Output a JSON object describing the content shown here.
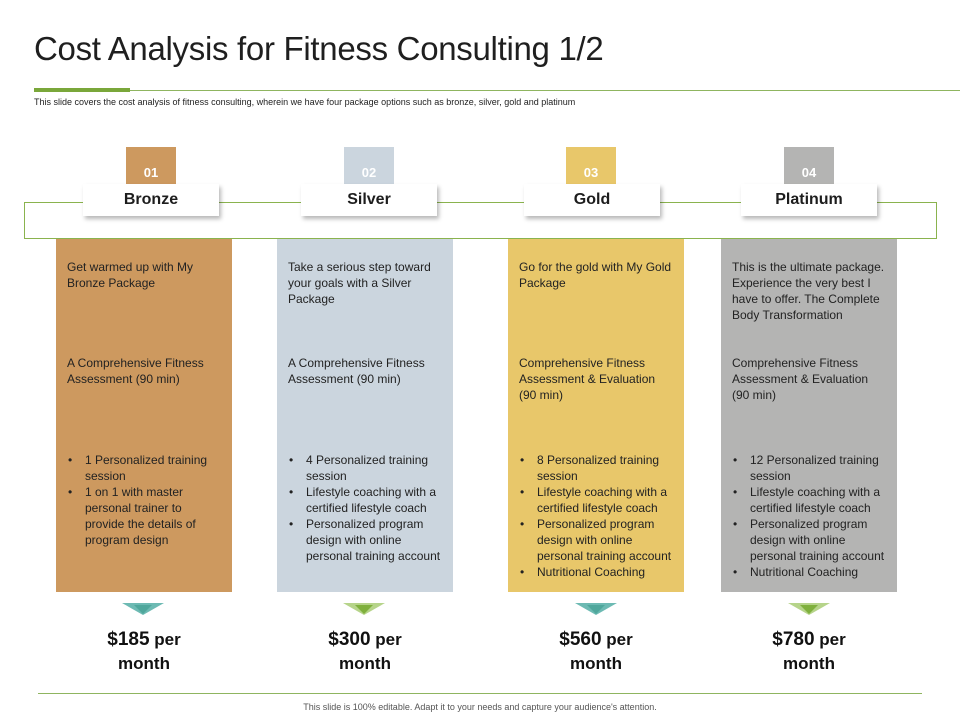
{
  "slide": {
    "title": "Cost Analysis for Fitness Consulting 1/2",
    "subtitle": "This slide covers the cost analysis of fitness consulting, wherein we have four package options such as bronze, silver, gold and platinum",
    "footer": "This slide is 100% editable. Adapt it to your needs and capture your audience's attention."
  },
  "colors": {
    "accent_green": "#7aa73a",
    "bronze": "#cd995f",
    "silver": "#cbd5de",
    "gold": "#e8c76a",
    "platinum": "#b4b4b3"
  },
  "packages": [
    {
      "number": "01",
      "name": "Bronze",
      "intro": "Get warmed up with My Bronze Package",
      "assessment": "A Comprehensive Fitness Assessment (90 min)",
      "features": [
        "1 Personalized training session",
        "1 on 1 with master personal trainer to provide the details of program design"
      ],
      "price": "$185",
      "price_suffix": "per",
      "price_period": "month"
    },
    {
      "number": "02",
      "name": "Silver",
      "intro": "Take a serious step toward your goals with a Silver Package",
      "assessment": "A Comprehensive Fitness Assessment (90 min)",
      "features": [
        "4 Personalized training session",
        "Lifestyle coaching with a certified lifestyle coach",
        "Personalized program design with online personal training account"
      ],
      "price": "$300",
      "price_suffix": "per",
      "price_period": "month"
    },
    {
      "number": "03",
      "name": "Gold",
      "intro": "Go for the gold with My Gold Package",
      "assessment": "Comprehensive Fitness Assessment & Evaluation (90 min)",
      "features": [
        "8 Personalized training session",
        "Lifestyle coaching with a certified lifestyle coach",
        "Personalized program design with online personal training account",
        "Nutritional Coaching"
      ],
      "price": "$560",
      "price_suffix": "per",
      "price_period": "month"
    },
    {
      "number": "04",
      "name": "Platinum",
      "intro": "This is the ultimate package. Experience the very best I have to offer. The Complete Body Transformation",
      "assessment": "Comprehensive Fitness Assessment & Evaluation (90 min)",
      "features": [
        "12 Personalized training session",
        "Lifestyle coaching with a certified lifestyle coach",
        "Personalized program design with online personal training account",
        "Nutritional Coaching"
      ],
      "price": "$780",
      "price_suffix": "per",
      "price_period": "month"
    }
  ]
}
